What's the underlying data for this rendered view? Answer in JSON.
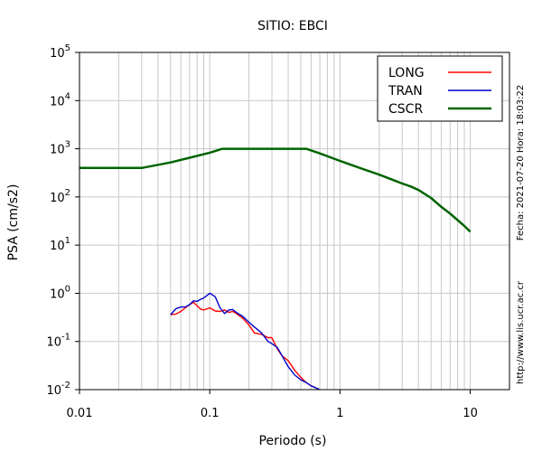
{
  "chart_data": {
    "type": "line",
    "title": "SITIO: EBCI",
    "xlabel": "Periodo (s)",
    "ylabel": "PSA (cm/s2)",
    "xscale": "log",
    "yscale": "log",
    "xlim": [
      0.01,
      20
    ],
    "ylim": [
      0.01,
      100000
    ],
    "grid": true,
    "legend_position": "top-right",
    "x_ticks": [
      {
        "value": 0.01,
        "label": "0.01"
      },
      {
        "value": 0.1,
        "label": "0.1"
      },
      {
        "value": 1,
        "label": "1"
      },
      {
        "value": 10,
        "label": "10"
      }
    ],
    "y_ticks": [
      {
        "value": 0.01,
        "base": "10",
        "exp": "-2"
      },
      {
        "value": 0.1,
        "base": "10",
        "exp": "-1"
      },
      {
        "value": 1,
        "base": "10",
        "exp": "0"
      },
      {
        "value": 10,
        "base": "10",
        "exp": "1"
      },
      {
        "value": 100,
        "base": "10",
        "exp": "2"
      },
      {
        "value": 1000,
        "base": "10",
        "exp": "3"
      },
      {
        "value": 10000,
        "base": "10",
        "exp": "4"
      },
      {
        "value": 100000,
        "base": "10",
        "exp": "5"
      }
    ],
    "series": [
      {
        "name": "LONG",
        "color": "#ff0000",
        "x": [
          0.05,
          0.055,
          0.06,
          0.065,
          0.07,
          0.075,
          0.08,
          0.085,
          0.09,
          0.1,
          0.11,
          0.12,
          0.13,
          0.14,
          0.15,
          0.16,
          0.18,
          0.2,
          0.22,
          0.25,
          0.28,
          0.3,
          0.33,
          0.36,
          0.4,
          0.45,
          0.5,
          0.55,
          0.6,
          0.65
        ],
        "y": [
          0.36,
          0.37,
          0.42,
          0.5,
          0.58,
          0.65,
          0.55,
          0.47,
          0.45,
          0.5,
          0.43,
          0.42,
          0.45,
          0.4,
          0.42,
          0.38,
          0.3,
          0.22,
          0.15,
          0.14,
          0.12,
          0.12,
          0.07,
          0.05,
          0.04,
          0.025,
          0.018,
          0.014,
          0.012,
          0.011
        ]
      },
      {
        "name": "TRAN",
        "color": "#0000cc",
        "x": [
          0.05,
          0.055,
          0.06,
          0.065,
          0.07,
          0.075,
          0.08,
          0.085,
          0.09,
          0.1,
          0.11,
          0.12,
          0.13,
          0.14,
          0.15,
          0.16,
          0.18,
          0.2,
          0.22,
          0.25,
          0.28,
          0.3,
          0.33,
          0.36,
          0.4,
          0.45,
          0.5,
          0.55,
          0.6,
          0.7
        ],
        "y": [
          0.36,
          0.48,
          0.52,
          0.52,
          0.58,
          0.7,
          0.68,
          0.75,
          0.8,
          1.0,
          0.85,
          0.5,
          0.38,
          0.45,
          0.46,
          0.4,
          0.33,
          0.25,
          0.2,
          0.15,
          0.1,
          0.09,
          0.075,
          0.05,
          0.03,
          0.02,
          0.016,
          0.014,
          0.012,
          0.01
        ]
      },
      {
        "name": "CSCR",
        "color": "#006400",
        "x": [
          0.01,
          0.03,
          0.05,
          0.07,
          0.1,
          0.125,
          0.2,
          0.3,
          0.5,
          0.55,
          0.7,
          1,
          1.5,
          2,
          2.5,
          3,
          3.5,
          4,
          5,
          6,
          7,
          8,
          9,
          10
        ],
        "y": [
          400,
          400,
          520,
          650,
          830,
          1000,
          1000,
          1000,
          1000,
          1000,
          800,
          560,
          380,
          290,
          230,
          190,
          165,
          140,
          95,
          62,
          45,
          33,
          25,
          19
        ]
      }
    ]
  },
  "side_text": {
    "date": "Fecha: 2021-07-20  Hora: 18:03:22",
    "url": "http://www.lis.ucr.ac.cr"
  }
}
